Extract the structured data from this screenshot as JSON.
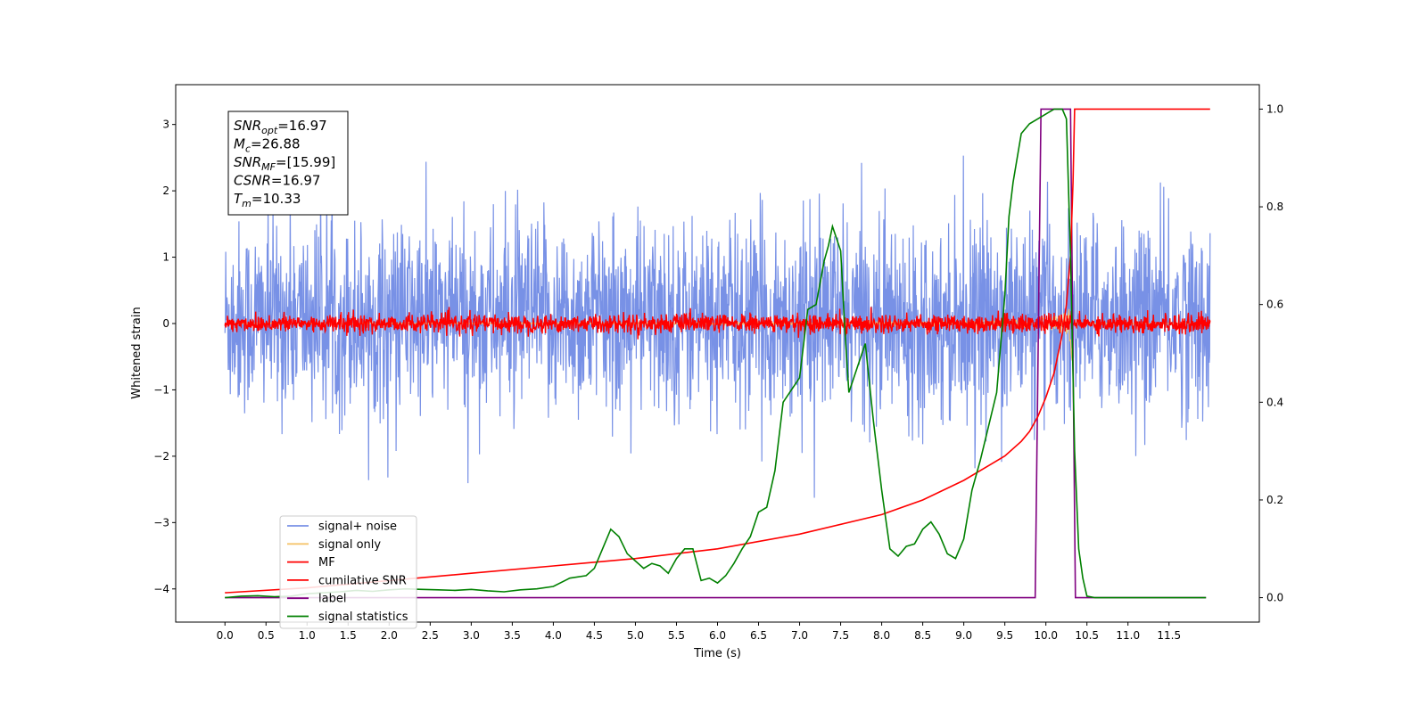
{
  "chart_data": {
    "type": "line",
    "xlabel": "Time (s)",
    "ylabel": "Whitened strain",
    "xlim": [
      -0.6,
      12.6
    ],
    "ylim": [
      -4.5,
      3.6
    ],
    "y2lim": [
      -0.05,
      1.05
    ],
    "x_ticks": [
      0.0,
      0.5,
      1.0,
      1.5,
      2.0,
      2.5,
      3.0,
      3.5,
      4.0,
      4.5,
      5.0,
      5.5,
      6.0,
      6.5,
      7.0,
      7.5,
      8.0,
      8.5,
      9.0,
      9.5,
      10.0,
      10.5,
      11.0,
      11.5
    ],
    "x_tick_labels": [
      "0.0",
      "0.5",
      "1.0",
      "1.5",
      "2.0",
      "2.5",
      "3.0",
      "3.5",
      "4.0",
      "4.5",
      "5.0",
      "5.5",
      "6.0",
      "6.5",
      "7.0",
      "7.5",
      "8.0",
      "8.5",
      "9.0",
      "9.5",
      "10.0",
      "10.5",
      "11.0",
      "11.5"
    ],
    "y_ticks": [
      -4,
      -3,
      -2,
      -1,
      0,
      1,
      2,
      3
    ],
    "y_tick_labels": [
      "−4",
      "−3",
      "−2",
      "−1",
      "0",
      "1",
      "2",
      "3"
    ],
    "y2_ticks": [
      0.0,
      0.2,
      0.4,
      0.6,
      0.8,
      1.0
    ],
    "y2_tick_labels": [
      "0.0",
      "0.2",
      "0.4",
      "0.6",
      "0.8",
      "1.0"
    ],
    "grid": false,
    "legend_position": "lower-left",
    "annotation": [
      {
        "sym": "SNR",
        "sub": "opt",
        "val": "=16.97"
      },
      {
        "sym": "M",
        "sub": "c",
        "val": "=26.88"
      },
      {
        "sym": "SNR",
        "sub": "MF",
        "val": "=[15.99]"
      },
      {
        "sym": "CSNR",
        "sub": "",
        "val": "=16.97"
      },
      {
        "sym": "T",
        "sub": "m",
        "val": "=10.33"
      }
    ],
    "series": [
      {
        "name": "signal+ noise",
        "color": "#7891e6",
        "axis": "left",
        "style": "noise band, amplitude about ±2, spikes to ±3",
        "x_range": [
          0.0,
          12.0
        ]
      },
      {
        "name": "signal only",
        "color": "#f5c56e",
        "axis": "left",
        "style": "chirp growing from about 9.3 s, max near 10.3 s",
        "x_range": [
          0.0,
          12.0
        ]
      },
      {
        "name": "MF",
        "color": "#ff0000",
        "axis": "left",
        "style": "narrow noise band about ±0.15",
        "x_range": [
          0.0,
          12.0
        ]
      },
      {
        "name": "cumilative SNR",
        "color": "#ff0000",
        "axis": "right",
        "x": [
          0.0,
          1.0,
          2.0,
          3.0,
          4.0,
          5.0,
          6.0,
          7.0,
          8.0,
          8.5,
          9.0,
          9.3,
          9.5,
          9.7,
          9.8,
          9.9,
          10.0,
          10.1,
          10.2,
          10.25,
          10.3,
          10.33,
          10.35,
          12.0
        ],
        "values": [
          0.01,
          0.02,
          0.035,
          0.05,
          0.065,
          0.08,
          0.1,
          0.13,
          0.17,
          0.2,
          0.24,
          0.27,
          0.29,
          0.32,
          0.34,
          0.37,
          0.41,
          0.46,
          0.54,
          0.6,
          0.7,
          0.85,
          1.0,
          1.0
        ]
      },
      {
        "name": "label",
        "color": "#800080",
        "axis": "right",
        "x": [
          0.0,
          9.87,
          9.94,
          10.3,
          10.36,
          11.95
        ],
        "values": [
          0.0,
          0.0,
          1.0,
          1.0,
          0.0,
          0.0
        ]
      },
      {
        "name": "signal statistics",
        "color": "#008000",
        "axis": "right",
        "x": [
          0.0,
          0.2,
          0.4,
          0.6,
          0.8,
          1.0,
          1.2,
          1.4,
          1.6,
          1.8,
          2.0,
          2.2,
          2.4,
          2.6,
          2.8,
          3.0,
          3.2,
          3.4,
          3.6,
          3.8,
          4.0,
          4.2,
          4.4,
          4.5,
          4.6,
          4.7,
          4.8,
          4.9,
          5.0,
          5.1,
          5.2,
          5.3,
          5.4,
          5.5,
          5.6,
          5.7,
          5.8,
          5.9,
          6.0,
          6.1,
          6.2,
          6.3,
          6.4,
          6.5,
          6.6,
          6.7,
          6.8,
          6.9,
          7.0,
          7.1,
          7.2,
          7.3,
          7.35,
          7.4,
          7.5,
          7.55,
          7.6,
          7.7,
          7.8,
          7.9,
          8.0,
          8.1,
          8.2,
          8.3,
          8.4,
          8.5,
          8.6,
          8.7,
          8.8,
          8.9,
          9.0,
          9.1,
          9.2,
          9.3,
          9.4,
          9.5,
          9.55,
          9.6,
          9.7,
          9.8,
          9.9,
          10.0,
          10.1,
          10.2,
          10.25,
          10.3,
          10.35,
          10.4,
          10.45,
          10.5,
          10.6,
          11.0,
          11.5,
          11.95
        ],
        "values": [
          0.0,
          0.003,
          0.004,
          0.002,
          0.003,
          0.008,
          0.01,
          0.012,
          0.015,
          0.013,
          0.016,
          0.018,
          0.017,
          0.016,
          0.015,
          0.017,
          0.014,
          0.012,
          0.016,
          0.018,
          0.023,
          0.04,
          0.045,
          0.06,
          0.1,
          0.14,
          0.125,
          0.09,
          0.075,
          0.06,
          0.07,
          0.065,
          0.05,
          0.08,
          0.1,
          0.1,
          0.035,
          0.04,
          0.03,
          0.045,
          0.07,
          0.1,
          0.125,
          0.175,
          0.185,
          0.26,
          0.4,
          0.425,
          0.45,
          0.59,
          0.6,
          0.69,
          0.72,
          0.76,
          0.71,
          0.55,
          0.42,
          0.47,
          0.52,
          0.36,
          0.22,
          0.1,
          0.085,
          0.105,
          0.11,
          0.14,
          0.155,
          0.13,
          0.09,
          0.08,
          0.12,
          0.22,
          0.28,
          0.35,
          0.42,
          0.62,
          0.78,
          0.85,
          0.95,
          0.97,
          0.98,
          0.99,
          1.0,
          1.0,
          0.98,
          0.7,
          0.3,
          0.1,
          0.04,
          0.003,
          0.0,
          0.0,
          0.0,
          0.0
        ]
      }
    ]
  }
}
